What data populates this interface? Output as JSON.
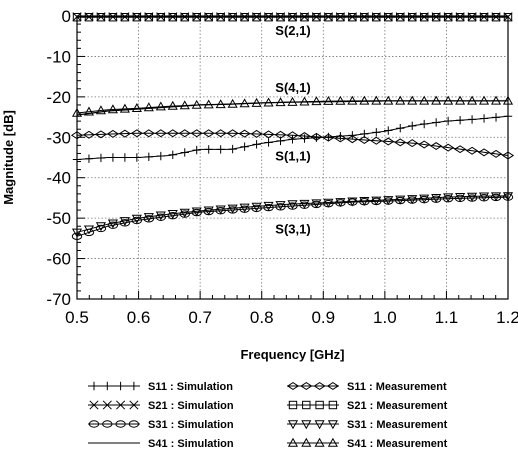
{
  "chart_data": {
    "type": "line",
    "xlabel": "Frequency [GHz]",
    "ylabel": "Magnitude [dB]",
    "xlim": [
      0.5,
      1.2
    ],
    "ylim": [
      -70,
      0
    ],
    "xticks": [
      0.5,
      0.6,
      0.7,
      0.8,
      0.9,
      1.0,
      1.1,
      1.2
    ],
    "xtick_labels": [
      "0.5",
      "0.6",
      "0.7",
      "0.8",
      "0.9",
      "1.0",
      "1.1",
      "1.2"
    ],
    "yticks": [
      0,
      -10,
      -20,
      -30,
      -40,
      -50,
      -60,
      -70
    ],
    "ytick_labels": [
      "0",
      "-10",
      "-20",
      "-30",
      "-40",
      "-50",
      "-60",
      "-70"
    ],
    "grid": true,
    "legend_position": "bottom",
    "x": [
      0.5,
      0.55,
      0.6,
      0.65,
      0.7,
      0.75,
      0.8,
      0.85,
      0.9,
      0.95,
      1.0,
      1.05,
      1.1,
      1.15,
      1.2
    ],
    "annotations": [
      {
        "text": "S(2,1)",
        "x": 0.9,
        "y": -3.5
      },
      {
        "text": "S(4,1)",
        "x": 0.9,
        "y": -17.5
      },
      {
        "text": "S(1,1)",
        "x": 0.9,
        "y": -34.5
      },
      {
        "text": "S(3,1)",
        "x": 0.9,
        "y": -52.5
      }
    ],
    "series": [
      {
        "name": "S11 : Simulation",
        "marker": "plus",
        "values": [
          -35.5,
          -35,
          -35,
          -34.5,
          -33,
          -33,
          -31.5,
          -30.5,
          -30,
          -29.5,
          -28.5,
          -27,
          -26,
          -25.5,
          -24.8
        ]
      },
      {
        "name": "S21 : Simulation",
        "marker": "cross",
        "values": [
          -0.2,
          -0.2,
          -0.2,
          -0.2,
          -0.2,
          -0.2,
          -0.2,
          -0.2,
          -0.2,
          -0.2,
          -0.2,
          -0.2,
          -0.2,
          -0.2,
          -0.2
        ]
      },
      {
        "name": "S31 : Simulation",
        "marker": "circle",
        "values": [
          -54.5,
          -52,
          -50.5,
          -49.5,
          -48.5,
          -48,
          -47.5,
          -47,
          -46.5,
          -46,
          -45.8,
          -45.5,
          -45.2,
          -45,
          -44.8
        ]
      },
      {
        "name": "S41 : Simulation",
        "marker": "none",
        "values": [
          -24.5,
          -23.5,
          -23,
          -22.5,
          -22,
          -21.8,
          -21.5,
          -21.3,
          -21.2,
          -21.1,
          -21,
          -21,
          -21,
          -21,
          -21
        ]
      },
      {
        "name": "S11 : Measurement",
        "marker": "diamond",
        "values": [
          -29.5,
          -29.2,
          -29,
          -29,
          -29,
          -29,
          -29.2,
          -29.5,
          -30,
          -30.5,
          -31,
          -31.5,
          -32.5,
          -33.5,
          -34.5
        ]
      },
      {
        "name": "S21 : Measurement",
        "marker": "square",
        "values": [
          -0.3,
          -0.3,
          -0.3,
          -0.3,
          -0.3,
          -0.3,
          -0.3,
          -0.3,
          -0.3,
          -0.3,
          -0.3,
          -0.3,
          -0.3,
          -0.3,
          -0.3
        ]
      },
      {
        "name": "S31 : Measurement",
        "marker": "triangle-down",
        "values": [
          -53.5,
          -51.5,
          -50,
          -49,
          -48.2,
          -47.6,
          -47,
          -46.5,
          -46.2,
          -45.8,
          -45.5,
          -45.2,
          -44.8,
          -44.6,
          -44.5
        ]
      },
      {
        "name": "S41 : Measurement",
        "marker": "triangle-up",
        "values": [
          -24,
          -23.2,
          -22.8,
          -22.3,
          -22,
          -21.8,
          -21.5,
          -21.3,
          -21.1,
          -21,
          -21,
          -21,
          -21,
          -21,
          -21
        ]
      }
    ]
  }
}
